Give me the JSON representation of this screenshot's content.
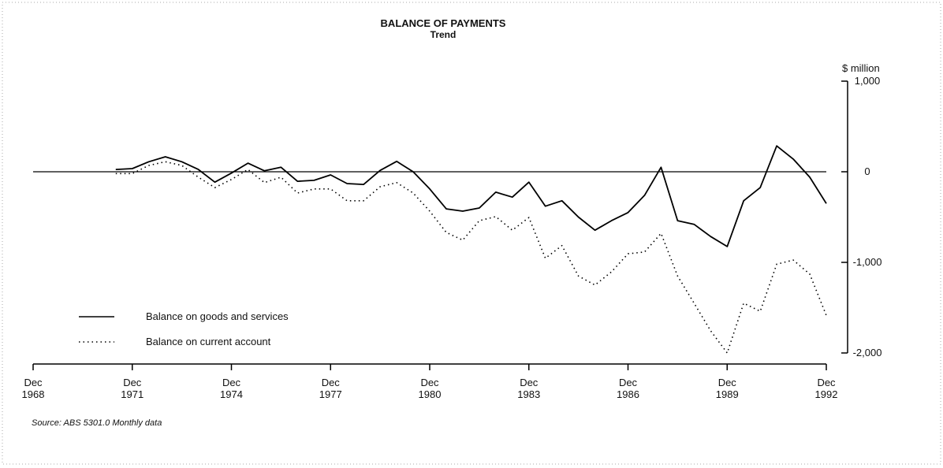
{
  "chart_data": {
    "type": "line",
    "title": "BALANCE OF PAYMENTS",
    "subtitle": "Trend",
    "y_axis_label": "$ million",
    "source": "Source: ABS 5301.0 Monthly data",
    "x": [
      "1971-06",
      "1971-12",
      "1972-06",
      "1972-12",
      "1973-06",
      "1973-12",
      "1974-06",
      "1974-12",
      "1975-06",
      "1975-12",
      "1976-06",
      "1976-12",
      "1977-06",
      "1977-12",
      "1978-06",
      "1978-12",
      "1979-06",
      "1979-12",
      "1980-06",
      "1980-12",
      "1981-06",
      "1981-12",
      "1982-06",
      "1982-12",
      "1983-06",
      "1983-12",
      "1984-06",
      "1984-12",
      "1985-06",
      "1985-12",
      "1986-06",
      "1986-12",
      "1987-06",
      "1987-12",
      "1988-06",
      "1988-12",
      "1989-06",
      "1989-12",
      "1990-06",
      "1990-12",
      "1991-06",
      "1991-12",
      "1992-06",
      "1992-12"
    ],
    "series": [
      {
        "name": "Balance on goods and services",
        "color": "#000000",
        "style": "solid",
        "values": [
          25,
          35,
          110,
          165,
          110,
          25,
          -115,
          -15,
          95,
          10,
          50,
          -105,
          -95,
          -35,
          -130,
          -140,
          15,
          115,
          0,
          -190,
          -410,
          -435,
          -400,
          -225,
          -280,
          -115,
          -380,
          -320,
          -500,
          -645,
          -540,
          -450,
          -260,
          50,
          -540,
          -580,
          -715,
          -825,
          -320,
          -175,
          285,
          140,
          -60,
          -350
        ]
      },
      {
        "name": "Balance on current account",
        "color": "#000000",
        "style": "dotted",
        "values": [
          -20,
          -20,
          70,
          110,
          70,
          -60,
          -175,
          -85,
          25,
          -120,
          -60,
          -235,
          -190,
          -190,
          -320,
          -320,
          -165,
          -120,
          -235,
          -435,
          -670,
          -755,
          -540,
          -495,
          -645,
          -505,
          -955,
          -815,
          -1150,
          -1250,
          -1105,
          -905,
          -885,
          -680,
          -1150,
          -1450,
          -1755,
          -2000,
          -1450,
          -1540,
          -1020,
          -975,
          -1130,
          -1585
        ]
      }
    ],
    "xlim": [
      "1968-12",
      "1992-12"
    ],
    "xticks": [
      {
        "value": "1968-12",
        "label": "Dec 1968"
      },
      {
        "value": "1971-12",
        "label": "Dec 1971"
      },
      {
        "value": "1974-12",
        "label": "Dec 1974"
      },
      {
        "value": "1977-12",
        "label": "Dec 1977"
      },
      {
        "value": "1980-12",
        "label": "Dec 1980"
      },
      {
        "value": "1983-12",
        "label": "Dec 1983"
      },
      {
        "value": "1986-12",
        "label": "Dec 1986"
      },
      {
        "value": "1989-12",
        "label": "Dec 1989"
      },
      {
        "value": "1992-12",
        "label": "Dec 1992"
      }
    ],
    "ylim": [
      -2000,
      1000
    ],
    "yticks": [
      {
        "value": 1000,
        "label": "1,000"
      },
      0,
      {
        "value": -1000,
        "label": "-1,000"
      },
      {
        "value": -2000,
        "label": "-2,000"
      }
    ],
    "y_axis_side": "right",
    "zero_line": true,
    "legend": "lower left"
  }
}
